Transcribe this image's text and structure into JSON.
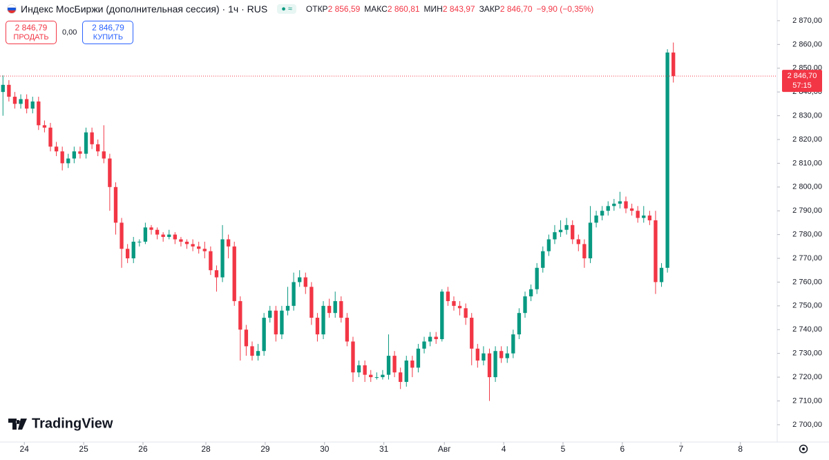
{
  "header": {
    "title": "Индекс МосБиржи (дополнительная сессия) · 1ч · RUS",
    "ohlc": [
      {
        "label": "ОТКР",
        "value": "2 856,59"
      },
      {
        "label": "МАКС",
        "value": "2 860,81"
      },
      {
        "label": "МИН",
        "value": "2 843,97"
      },
      {
        "label": "ЗАКР",
        "value": "2 846,70"
      }
    ],
    "change": "−9,90 (−0,35%)"
  },
  "trade": {
    "sell_price": "2 846,79",
    "sell_label": "ПРОДАТЬ",
    "spread": "0,00",
    "buy_price": "2 846,79",
    "buy_label": "КУПИТЬ"
  },
  "watermark": "TradingView",
  "chart_data": {
    "type": "candlestick",
    "open": [
      2840,
      2843,
      2838,
      2835,
      2837,
      2833,
      2836,
      2826,
      2825,
      2817,
      2815,
      2810,
      2812,
      2815,
      2814,
      2823,
      2818,
      2815,
      2812,
      2800,
      2785,
      2774,
      2770,
      2777,
      2777,
      2783,
      2782,
      2780,
      2779,
      2780,
      2778,
      2777,
      2776,
      2775,
      2774,
      2773,
      2765,
      2762,
      2778,
      2775,
      2752,
      2740,
      2733,
      2729,
      2731,
      2745,
      2748,
      2738,
      2748,
      2750,
      2760,
      2762,
      2758,
      2745,
      2738,
      2750,
      2747,
      2752,
      2745,
      2735,
      2722,
      2725,
      2721,
      2720,
      2720,
      2721,
      2729,
      2722,
      2718,
      2727,
      2724,
      2732,
      2735,
      2737,
      2736,
      2756,
      2752,
      2750,
      2749,
      2745,
      2732,
      2727,
      2730,
      2720,
      2731,
      2728,
      2730,
      2738,
      2747,
      2754,
      2757,
      2766,
      2773,
      2778,
      2781,
      2782,
      2784,
      2778,
      2776,
      2770,
      2785,
      2788,
      2790,
      2792,
      2793,
      2794,
      2791,
      2790,
      2787,
      2788,
      2786,
      2760,
      2766,
      2856.59
    ],
    "high": [
      2847,
      2845,
      2840,
      2839,
      2839,
      2838,
      2838,
      2828,
      2827,
      2819,
      2817,
      2814,
      2817,
      2817,
      2825,
      2825,
      2820,
      2826,
      2814,
      2802,
      2787,
      2776,
      2779,
      2778,
      2785,
      2784,
      2783,
      2781,
      2782,
      2781,
      2779,
      2778,
      2778,
      2777,
      2777,
      2775,
      2767,
      2784,
      2780,
      2777,
      2754,
      2742,
      2735,
      2734,
      2747,
      2750,
      2750,
      2750,
      2758,
      2764,
      2765,
      2764,
      2760,
      2747,
      2752,
      2753,
      2756,
      2754,
      2747,
      2737,
      2727,
      2727,
      2723,
      2722,
      2723,
      2738,
      2731,
      2724,
      2729,
      2729,
      2734,
      2737,
      2739,
      2739,
      2757,
      2758,
      2754,
      2752,
      2751,
      2747,
      2734,
      2733,
      2732,
      2733,
      2733,
      2733,
      2740,
      2749,
      2756,
      2759,
      2768,
      2775,
      2780,
      2784,
      2786,
      2787,
      2786,
      2780,
      2778,
      2792,
      2790,
      2792,
      2794,
      2795,
      2798,
      2796,
      2793,
      2792,
      2792,
      2790,
      2790,
      2768,
      2858,
      2860.81
    ],
    "low": [
      2830,
      2836,
      2833,
      2833,
      2831,
      2831,
      2824,
      2823,
      2815,
      2813,
      2807,
      2808,
      2810,
      2812,
      2812,
      2816,
      2813,
      2810,
      2790,
      2780,
      2766,
      2768,
      2768,
      2775,
      2776,
      2780,
      2778,
      2777,
      2778,
      2776,
      2775,
      2774,
      2773,
      2772,
      2770,
      2763,
      2756,
      2760,
      2770,
      2750,
      2727,
      2729,
      2727,
      2727,
      2729,
      2743,
      2735,
      2736,
      2746,
      2748,
      2758,
      2755,
      2742,
      2735,
      2736,
      2745,
      2745,
      2743,
      2733,
      2718,
      2720,
      2718,
      2718,
      2719,
      2719,
      2719,
      2720,
      2715,
      2716,
      2720,
      2722,
      2730,
      2733,
      2734,
      2735,
      2750,
      2748,
      2746,
      2742,
      2725,
      2724,
      2725,
      2710,
      2718,
      2726,
      2726,
      2728,
      2736,
      2745,
      2752,
      2755,
      2764,
      2771,
      2776,
      2779,
      2780,
      2776,
      2773,
      2766,
      2768,
      2783,
      2786,
      2788,
      2790,
      2791,
      2789,
      2788,
      2785,
      2785,
      2784,
      2755,
      2758,
      2764,
      2843.97
    ],
    "close": [
      2843,
      2838,
      2835,
      2837,
      2833,
      2836,
      2826,
      2825,
      2817,
      2815,
      2810,
      2812,
      2815,
      2814,
      2823,
      2818,
      2815,
      2812,
      2800,
      2785,
      2774,
      2770,
      2777,
      2777,
      2783,
      2782,
      2780,
      2779,
      2780,
      2778,
      2777,
      2776,
      2775,
      2774,
      2773,
      2765,
      2762,
      2778,
      2775,
      2752,
      2740,
      2733,
      2729,
      2731,
      2745,
      2748,
      2738,
      2748,
      2750,
      2760,
      2762,
      2758,
      2745,
      2738,
      2750,
      2747,
      2752,
      2745,
      2735,
      2722,
      2725,
      2721,
      2720,
      2720,
      2721,
      2729,
      2722,
      2718,
      2727,
      2724,
      2732,
      2735,
      2737,
      2736,
      2756,
      2752,
      2750,
      2749,
      2745,
      2732,
      2727,
      2730,
      2720,
      2731,
      2728,
      2730,
      2738,
      2747,
      2754,
      2757,
      2766,
      2773,
      2778,
      2781,
      2782,
      2784,
      2778,
      2776,
      2770,
      2785,
      2788,
      2790,
      2792,
      2793,
      2794,
      2791,
      2790,
      2787,
      2788,
      2786,
      2760,
      2766,
      2856.59,
      2846.7
    ],
    "up_color": "#089981",
    "down_color": "#f23645",
    "last_price_label": "2 846,70",
    "countdown": "57:15",
    "xlim": [
      -0.5,
      130.5
    ],
    "xticks": [
      {
        "value": 3.6,
        "label": "24"
      },
      {
        "value": 13.6,
        "label": "25"
      },
      {
        "value": 23.6,
        "label": "26"
      },
      {
        "value": 34.2,
        "label": "28"
      },
      {
        "value": 44.2,
        "label": "29"
      },
      {
        "value": 54.2,
        "label": "30"
      },
      {
        "value": 64.2,
        "label": "31"
      },
      {
        "value": 74.4,
        "label": "Авг"
      },
      {
        "value": 84.4,
        "label": "4"
      },
      {
        "value": 94.4,
        "label": "5"
      },
      {
        "value": 104.4,
        "label": "6"
      },
      {
        "value": 114.3,
        "label": "7"
      },
      {
        "value": 124.3,
        "label": "8"
      }
    ],
    "ylim": [
      2692.7,
      2878.7
    ],
    "yticks": [
      {
        "value": 2700,
        "label": "2 700,00"
      },
      {
        "value": 2710,
        "label": "2 710,00"
      },
      {
        "value": 2720,
        "label": "2 720,00"
      },
      {
        "value": 2730,
        "label": "2 730,00"
      },
      {
        "value": 2740,
        "label": "2 740,00"
      },
      {
        "value": 2750,
        "label": "2 750,00"
      },
      {
        "value": 2760,
        "label": "2 760,00"
      },
      {
        "value": 2770,
        "label": "2 770,00"
      },
      {
        "value": 2780,
        "label": "2 780,00"
      },
      {
        "value": 2790,
        "label": "2 790,00"
      },
      {
        "value": 2800,
        "label": "2 800,00"
      },
      {
        "value": 2810,
        "label": "2 810,00"
      },
      {
        "value": 2820,
        "label": "2 820,00"
      },
      {
        "value": 2830,
        "label": "2 830,00"
      },
      {
        "value": 2840,
        "label": "2 840,00"
      },
      {
        "value": 2850,
        "label": "2 850,00"
      },
      {
        "value": 2860,
        "label": "2 860,00"
      },
      {
        "value": 2870,
        "label": "2 870,00"
      }
    ]
  }
}
